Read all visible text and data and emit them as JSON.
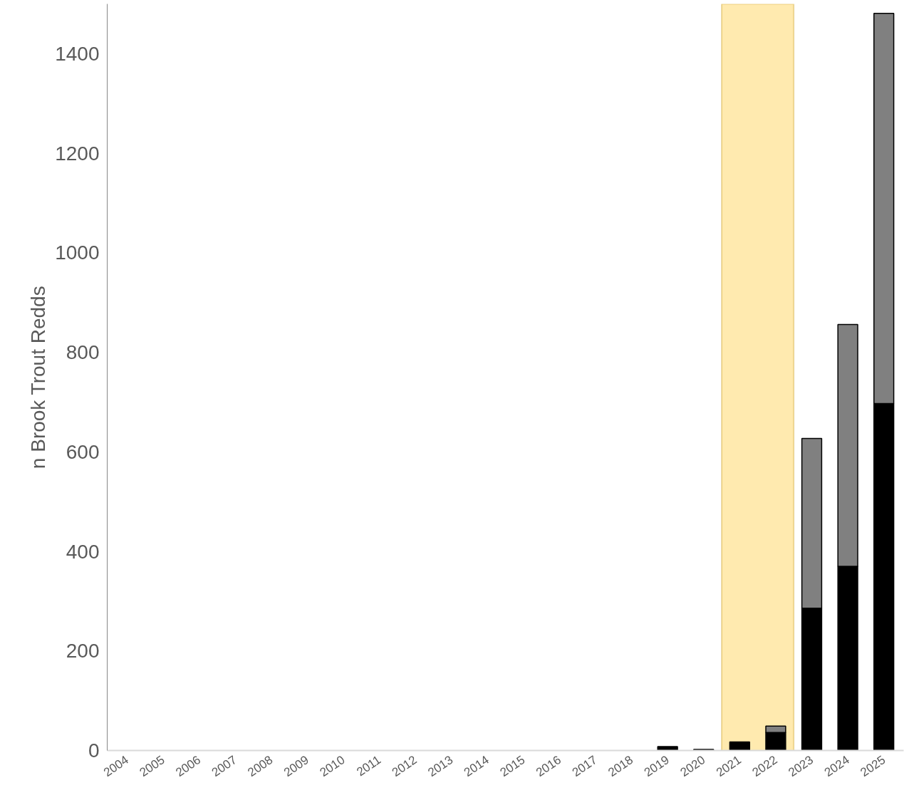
{
  "chart_data": {
    "type": "bar",
    "stacked": true,
    "ylabel": "n Brook Trout Redds",
    "categories": [
      "2004",
      "2005",
      "2006",
      "2007",
      "2008",
      "2009",
      "2010",
      "2011",
      "2012",
      "2013",
      "2014",
      "2015",
      "2016",
      "2017",
      "2018",
      "2019",
      "2020",
      "2021",
      "2022",
      "2023",
      "2024",
      "2025"
    ],
    "series": [
      {
        "color": "#000000",
        "values": [
          null,
          null,
          null,
          null,
          null,
          null,
          null,
          null,
          null,
          null,
          null,
          null,
          null,
          null,
          null,
          8,
          2,
          17,
          36,
          286,
          370,
          697
        ]
      },
      {
        "color": "#808080",
        "values": [
          null,
          null,
          null,
          null,
          null,
          null,
          null,
          null,
          null,
          null,
          null,
          null,
          null,
          null,
          null,
          null,
          null,
          null,
          13,
          341,
          486,
          784
        ]
      }
    ],
    "ylim": [
      0,
      1500
    ],
    "yticks": [
      0,
      200,
      400,
      600,
      800,
      1000,
      1200,
      1400
    ],
    "bands": [
      {
        "axis": "x",
        "from": "2021",
        "to": "2022",
        "color": "#ffeaaf"
      }
    ]
  }
}
